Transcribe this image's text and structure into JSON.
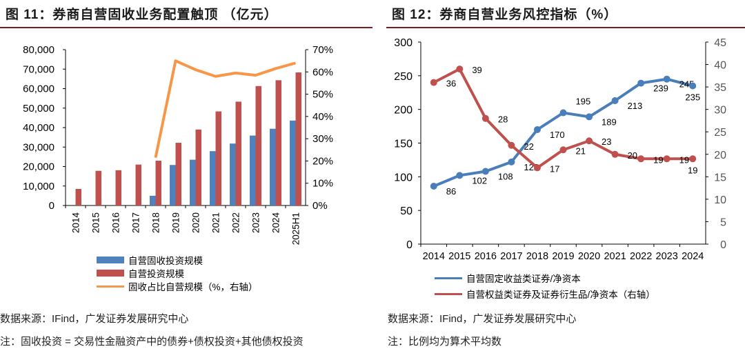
{
  "left": {
    "title": "图 11：券商自营固收业务配置触顶 （亿元）",
    "source": "数据来源：IFind，广发证券发展研究中心",
    "note": "注：固收投资 = 交易性金融资产中的债券+债权投资+其他债权投资",
    "chart_data": {
      "type": "bar",
      "categories": [
        "2014",
        "2015",
        "2016",
        "2017",
        "2018",
        "2019",
        "2020",
        "2021",
        "2022",
        "2023",
        "2024",
        "2025H1"
      ],
      "ylim": [
        0,
        80000
      ],
      "yticks": [
        "0",
        "10,000",
        "20,000",
        "30,000",
        "40,000",
        "50,000",
        "60,000",
        "70,000",
        "80,000"
      ],
      "y2lim": [
        0,
        0.7
      ],
      "y2ticks": [
        "0%",
        "10%",
        "20%",
        "30%",
        "40%",
        "50%",
        "60%",
        "70%"
      ],
      "legend": "bottom",
      "series": [
        {
          "name": "自营固收投资规模",
          "type": "bar",
          "color": "#4f81bd",
          "values": [
            null,
            null,
            null,
            null,
            5000,
            20800,
            23500,
            27900,
            31800,
            35900,
            39400,
            43600
          ]
        },
        {
          "name": "自营投资规模",
          "type": "bar",
          "color": "#c0504d",
          "values": [
            8500,
            17800,
            18100,
            21000,
            23000,
            32200,
            39000,
            48300,
            53300,
            61300,
            64300,
            68300
          ]
        },
        {
          "name": "固收占比自营规模（%，右轴）",
          "type": "line",
          "axis": "right",
          "color": "#f79646",
          "values": [
            null,
            null,
            null,
            null,
            0.215,
            0.65,
            0.61,
            0.58,
            0.595,
            0.585,
            0.615,
            0.64
          ]
        }
      ]
    }
  },
  "right": {
    "title": "图 12：券商自营业务风控指标（%）",
    "source": "数据来源：IFind，广发证券发展研究中心",
    "note": "注：比例均为算术平均数",
    "chart_data": {
      "type": "line",
      "categories": [
        "2014",
        "2015",
        "2016",
        "2017",
        "2018",
        "2019",
        "2020",
        "2021",
        "2022",
        "2023",
        "2024"
      ],
      "ylim": [
        0,
        300
      ],
      "yticks": [
        "0",
        "50",
        "100",
        "150",
        "200",
        "250",
        "300"
      ],
      "y2lim": [
        0,
        45
      ],
      "y2ticks": [
        "0",
        "5",
        "10",
        "15",
        "20",
        "25",
        "30",
        "35",
        "40",
        "45"
      ],
      "legend": "bottom",
      "series": [
        {
          "name": "自营固定收益类证券/净资本",
          "axis": "left",
          "color": "#4a7ebb",
          "values": [
            86,
            102,
            108,
            122,
            170,
            195,
            189,
            213,
            239,
            245,
            235
          ]
        },
        {
          "name": "自营权益类证券及证券衍生品/净资本（右轴）",
          "axis": "right",
          "color": "#c0504d",
          "values": [
            36,
            39,
            28,
            22,
            17,
            21,
            23,
            20,
            19,
            19,
            19
          ]
        }
      ]
    }
  }
}
